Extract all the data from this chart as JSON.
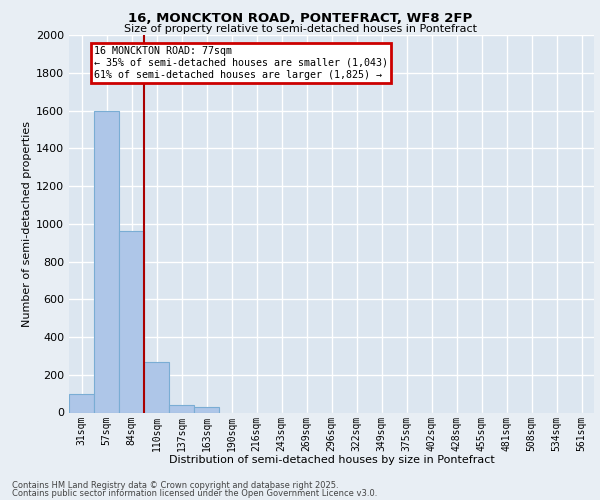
{
  "title_line1": "16, MONCKTON ROAD, PONTEFRACT, WF8 2FP",
  "title_line2": "Size of property relative to semi-detached houses in Pontefract",
  "xlabel": "Distribution of semi-detached houses by size in Pontefract",
  "ylabel": "Number of semi-detached properties",
  "categories": [
    "31sqm",
    "57sqm",
    "84sqm",
    "110sqm",
    "137sqm",
    "163sqm",
    "190sqm",
    "216sqm",
    "243sqm",
    "269sqm",
    "296sqm",
    "322sqm",
    "349sqm",
    "375sqm",
    "402sqm",
    "428sqm",
    "455sqm",
    "481sqm",
    "508sqm",
    "534sqm",
    "561sqm"
  ],
  "values": [
    100,
    1600,
    960,
    265,
    40,
    30,
    0,
    0,
    0,
    0,
    0,
    0,
    0,
    0,
    0,
    0,
    0,
    0,
    0,
    0,
    0
  ],
  "bar_color": "#aec6e8",
  "bar_edge_color": "#7aadd4",
  "property_line_color": "#aa0000",
  "property_line_x": 2.4,
  "annotation_title": "16 MONCKTON ROAD: 77sqm",
  "annotation_line1": "← 35% of semi-detached houses are smaller (1,043)",
  "annotation_line2": "61% of semi-detached houses are larger (1,825) →",
  "ylim": [
    0,
    2000
  ],
  "yticks": [
    0,
    200,
    400,
    600,
    800,
    1000,
    1200,
    1400,
    1600,
    1800,
    2000
  ],
  "footer_line1": "Contains HM Land Registry data © Crown copyright and database right 2025.",
  "footer_line2": "Contains public sector information licensed under the Open Government Licence v3.0.",
  "background_color": "#e8eef4",
  "plot_bg_color": "#dce6f0",
  "grid_color": "#ffffff",
  "annotation_box_color": "#cc0000"
}
